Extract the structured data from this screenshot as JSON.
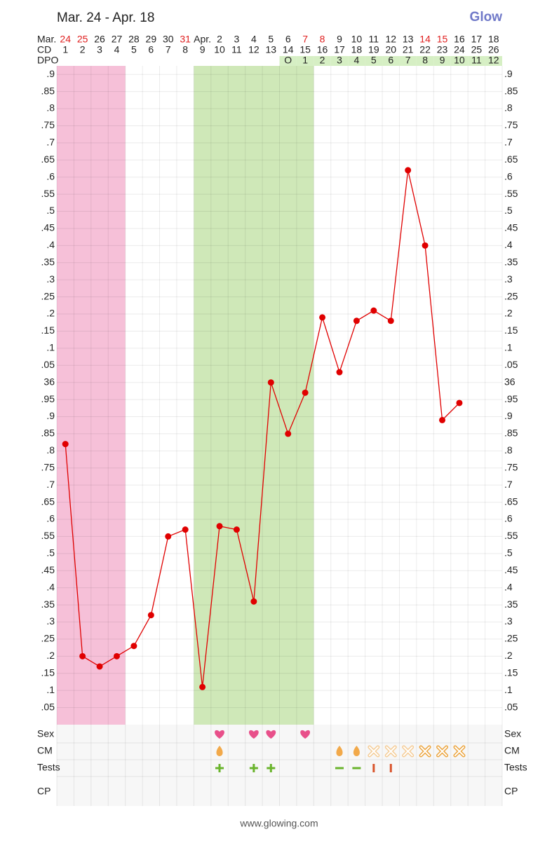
{
  "chart_data": {
    "type": "line",
    "title": "Mar. 24 - Apr. 18",
    "logo": "Glow",
    "footer": "www.glowing.com",
    "date_row": {
      "label": "Mar.",
      "values": [
        {
          "label": "24",
          "color": "#e02020"
        },
        {
          "label": "25",
          "color": "#e02020"
        },
        "26",
        "27",
        "28",
        "29",
        "30",
        {
          "label": "31",
          "color": "#e02020"
        },
        "Apr.",
        "2",
        "3",
        "4",
        "5",
        "6",
        {
          "label": "7",
          "color": "#e02020"
        },
        {
          "label": "8",
          "color": "#e02020"
        },
        "9",
        "10",
        "11",
        "12",
        "13",
        {
          "label": "14",
          "color": "#e02020"
        },
        {
          "label": "15",
          "color": "#e02020"
        },
        "16",
        "17",
        "18"
      ]
    },
    "cd_label": "CD",
    "x": [
      1,
      2,
      3,
      4,
      5,
      6,
      7,
      8,
      9,
      10,
      11,
      12,
      13,
      14,
      15,
      16,
      17,
      18,
      19,
      20,
      21,
      22,
      23,
      24,
      25,
      26
    ],
    "dpo_label": "DPO",
    "dpo": [
      null,
      null,
      null,
      null,
      null,
      null,
      null,
      null,
      null,
      null,
      null,
      null,
      null,
      "O",
      1,
      2,
      3,
      4,
      5,
      6,
      7,
      8,
      9,
      10,
      11,
      12
    ],
    "dpo_color": "#d6efc4",
    "values": [
      35.82,
      35.2,
      35.17,
      35.2,
      35.23,
      35.32,
      35.55,
      35.57,
      35.11,
      35.58,
      35.57,
      35.36,
      36.0,
      35.85,
      35.97,
      36.19,
      36.03,
      36.18,
      36.21,
      36.18,
      36.62,
      36.4,
      35.89,
      35.94,
      null,
      null
    ],
    "color": "#e00000",
    "bands": [
      {
        "from": 1,
        "to": 4,
        "color": "#f6c0d8"
      },
      {
        "from": 9,
        "to": 15,
        "color": "#cfe8b8"
      }
    ],
    "xlim": [
      0.5,
      26.5
    ],
    "ylim": [
      35.0,
      36.925
    ],
    "yticks": [
      {
        "value": 35.05,
        "label": ".05"
      },
      {
        "value": 35.1,
        "label": ".1"
      },
      {
        "value": 35.15,
        "label": ".15"
      },
      {
        "value": 35.2,
        "label": ".2"
      },
      {
        "value": 35.25,
        "label": ".25"
      },
      {
        "value": 35.3,
        "label": ".3"
      },
      {
        "value": 35.35,
        "label": ".35"
      },
      {
        "value": 35.4,
        "label": ".4"
      },
      {
        "value": 35.45,
        "label": ".45"
      },
      {
        "value": 35.5,
        "label": ".5"
      },
      {
        "value": 35.55,
        "label": ".55"
      },
      {
        "value": 35.6,
        "label": ".6"
      },
      {
        "value": 35.65,
        "label": ".65"
      },
      {
        "value": 35.7,
        "label": ".7"
      },
      {
        "value": 35.75,
        "label": ".75"
      },
      {
        "value": 35.8,
        "label": ".8"
      },
      {
        "value": 35.85,
        "label": ".85"
      },
      {
        "value": 35.9,
        "label": ".9"
      },
      {
        "value": 35.95,
        "label": ".95"
      },
      36,
      {
        "value": 36.05,
        "label": ".05"
      },
      {
        "value": 36.1,
        "label": ".1"
      },
      {
        "value": 36.15,
        "label": ".15"
      },
      {
        "value": 36.2,
        "label": ".2"
      },
      {
        "value": 36.25,
        "label": ".25"
      },
      {
        "value": 36.3,
        "label": ".3"
      },
      {
        "value": 36.35,
        "label": ".35"
      },
      {
        "value": 36.4,
        "label": ".4"
      },
      {
        "value": 36.45,
        "label": ".45"
      },
      {
        "value": 36.5,
        "label": ".5"
      },
      {
        "value": 36.55,
        "label": ".55"
      },
      {
        "value": 36.6,
        "label": ".6"
      },
      {
        "value": 36.65,
        "label": ".65"
      },
      {
        "value": 36.7,
        "label": ".7"
      },
      {
        "value": 36.75,
        "label": ".75"
      },
      {
        "value": 36.8,
        "label": ".8"
      },
      {
        "value": 36.85,
        "label": ".85"
      },
      {
        "value": 36.9,
        "label": ".9"
      }
    ],
    "grid": true,
    "row_labels": [
      "Sex",
      "CM",
      "Tests",
      "CP"
    ]
  }
}
